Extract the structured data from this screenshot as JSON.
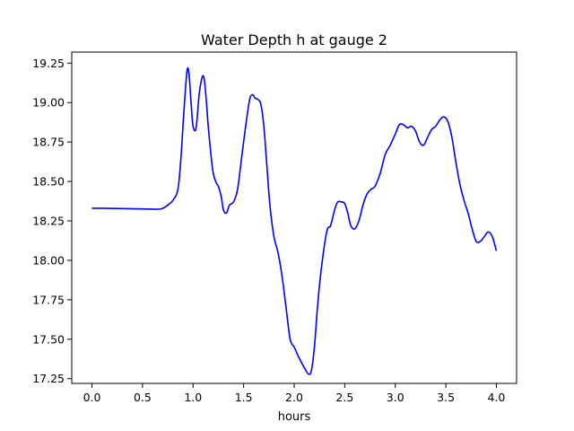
{
  "chart_data": {
    "type": "line",
    "title": "Water Depth h at gauge 2",
    "xlabel": "hours",
    "ylabel": "",
    "xlim": [
      -0.2,
      4.2
    ],
    "ylim": [
      17.22,
      19.32
    ],
    "xticks": [
      0.0,
      0.5,
      1.0,
      1.5,
      2.0,
      2.5,
      3.0,
      3.5,
      4.0
    ],
    "xtick_labels": [
      "0.0",
      "0.5",
      "1.0",
      "1.5",
      "2.0",
      "2.5",
      "3.0",
      "3.5",
      "4.0"
    ],
    "yticks": [
      17.25,
      17.5,
      17.75,
      18.0,
      18.25,
      18.5,
      18.75,
      19.0,
      19.25
    ],
    "ytick_labels": [
      "17.25",
      "17.50",
      "17.75",
      "18.00",
      "18.25",
      "18.50",
      "18.75",
      "19.00",
      "19.25"
    ],
    "grid": false,
    "legend": "none",
    "series": [
      {
        "color": "#0000ff",
        "x": [
          0.0,
          0.1,
          0.3,
          0.5,
          0.65,
          0.7,
          0.75,
          0.8,
          0.85,
          0.88,
          0.91,
          0.94,
          0.96,
          0.98,
          1.0,
          1.03,
          1.06,
          1.09,
          1.11,
          1.13,
          1.15,
          1.18,
          1.2,
          1.23,
          1.25,
          1.28,
          1.3,
          1.33,
          1.36,
          1.4,
          1.44,
          1.48,
          1.52,
          1.56,
          1.59,
          1.61,
          1.64,
          1.67,
          1.7,
          1.73,
          1.76,
          1.8,
          1.84,
          1.88,
          1.92,
          1.96,
          2.0,
          2.05,
          2.1,
          2.14,
          2.17,
          2.2,
          2.23,
          2.26,
          2.3,
          2.33,
          2.36,
          2.4,
          2.43,
          2.47,
          2.5,
          2.53,
          2.56,
          2.6,
          2.64,
          2.68,
          2.72,
          2.76,
          2.8,
          2.85,
          2.9,
          2.95,
          3.0,
          3.04,
          3.08,
          3.12,
          3.16,
          3.2,
          3.24,
          3.28,
          3.32,
          3.36,
          3.4,
          3.44,
          3.48,
          3.52,
          3.56,
          3.6,
          3.64,
          3.68,
          3.72,
          3.76,
          3.8,
          3.84,
          3.88,
          3.92,
          3.96,
          4.0
        ],
        "y": [
          18.33,
          18.33,
          18.328,
          18.326,
          18.324,
          18.33,
          18.35,
          18.38,
          18.45,
          18.65,
          18.95,
          19.2,
          19.18,
          19.0,
          18.85,
          18.84,
          19.05,
          19.16,
          19.15,
          19.02,
          18.85,
          18.65,
          18.55,
          18.49,
          18.47,
          18.4,
          18.32,
          18.3,
          18.35,
          18.37,
          18.45,
          18.65,
          18.85,
          19.02,
          19.05,
          19.03,
          19.02,
          18.99,
          18.85,
          18.6,
          18.35,
          18.15,
          18.05,
          17.9,
          17.7,
          17.5,
          17.45,
          17.38,
          17.32,
          17.28,
          17.3,
          17.45,
          17.7,
          17.9,
          18.1,
          18.2,
          18.22,
          18.32,
          18.37,
          18.37,
          18.36,
          18.3,
          18.22,
          18.2,
          18.25,
          18.35,
          18.42,
          18.45,
          18.47,
          18.55,
          18.67,
          18.73,
          18.8,
          18.86,
          18.86,
          18.84,
          18.85,
          18.82,
          18.75,
          18.73,
          18.78,
          18.83,
          18.85,
          18.89,
          18.91,
          18.88,
          18.78,
          18.62,
          18.48,
          18.38,
          18.3,
          18.2,
          18.12,
          18.12,
          18.15,
          18.18,
          18.15,
          18.06
        ]
      }
    ]
  }
}
